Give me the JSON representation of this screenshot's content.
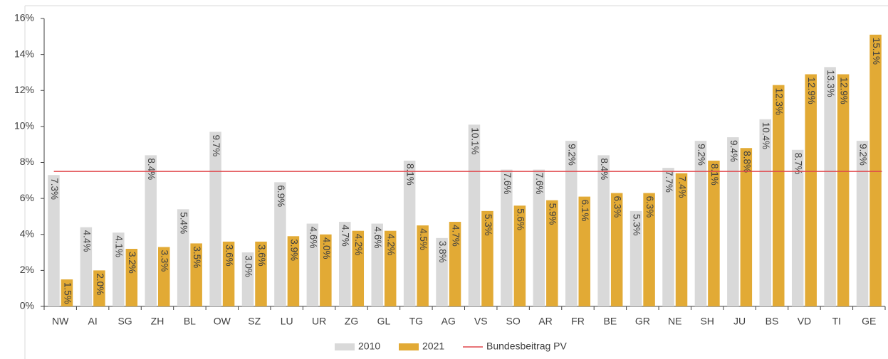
{
  "chart_data": {
    "type": "bar",
    "categories": [
      "NW",
      "AI",
      "SG",
      "ZH",
      "BL",
      "OW",
      "SZ",
      "LU",
      "UR",
      "ZG",
      "GL",
      "TG",
      "AG",
      "VS",
      "SO",
      "AR",
      "FR",
      "BE",
      "GR",
      "NE",
      "SH",
      "JU",
      "BS",
      "VD",
      "TI",
      "GE"
    ],
    "series": [
      {
        "name": "2010",
        "color": "#d9d9d9",
        "values": [
          7.3,
          4.4,
          4.1,
          8.4,
          5.4,
          9.7,
          3.0,
          6.9,
          4.6,
          4.7,
          4.6,
          8.1,
          3.8,
          10.1,
          7.6,
          7.6,
          9.2,
          8.4,
          5.3,
          7.7,
          9.2,
          9.4,
          10.4,
          8.7,
          13.3,
          9.2
        ],
        "value_labels": [
          "7.3%",
          "4.4%",
          "4.1%",
          "8.4%",
          "5.4%",
          "9.7%",
          "3.0%",
          "6.9%",
          "4.6%",
          "4.7%",
          "4.6%",
          "8.1%",
          "3.8%",
          "10.1%",
          "7.6%",
          "7.6%",
          "9.2%",
          "8.4%",
          "5.3%",
          "7.7%",
          "9.2%",
          "9.4%",
          "10.4%",
          "8.7%",
          "13.3%",
          "9.2%"
        ]
      },
      {
        "name": "2021",
        "color": "#e2aa35",
        "values": [
          1.5,
          2.0,
          3.2,
          3.3,
          3.5,
          3.6,
          3.6,
          3.9,
          4.0,
          4.2,
          4.2,
          4.5,
          4.7,
          5.3,
          5.6,
          5.9,
          6.1,
          6.3,
          6.3,
          7.4,
          8.1,
          8.8,
          12.3,
          12.9,
          12.9,
          15.1
        ],
        "value_labels": [
          "1.5%",
          "2.0%",
          "3.2%",
          "3.3%",
          "3.5%",
          "3.6%",
          "3.6%",
          "3.9%",
          "4.0%",
          "4.2%",
          "4.2%",
          "4.5%",
          "4.7%",
          "5.3%",
          "5.6%",
          "5.9%",
          "6.1%",
          "6.3%",
          "6.3%",
          "7.4%",
          "8.1%",
          "8.8%",
          "12.3%",
          "12.9%",
          "12.9%",
          "15.1%"
        ]
      }
    ],
    "reference_line": {
      "name": "Bundesbeitrag PV",
      "value": 7.5,
      "color": "#e0474c"
    },
    "ylim": [
      0,
      16
    ],
    "yticks": [
      {
        "value": 0,
        "label": "0%"
      },
      {
        "value": 2,
        "label": "2%"
      },
      {
        "value": 4,
        "label": "4%"
      },
      {
        "value": 6,
        "label": "6%"
      },
      {
        "value": 8,
        "label": "8%"
      },
      {
        "value": 10,
        "label": "10%"
      },
      {
        "value": 12,
        "label": "12%"
      },
      {
        "value": 14,
        "label": "14%"
      },
      {
        "value": 16,
        "label": "16%"
      }
    ],
    "grid": false
  }
}
